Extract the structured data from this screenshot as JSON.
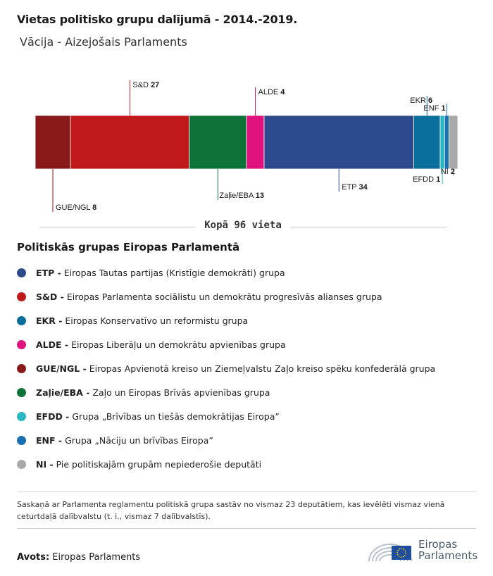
{
  "title": "Vietas politisko grupu dalījumā - 2014.-2019.",
  "subtitle": "Vācija - Aizejošais Parlaments",
  "total_label": "Kopā 96 vieta",
  "chart_data": {
    "type": "bar",
    "orientation": "stacked-horizontal",
    "total": 96,
    "categories": [
      "GUE/NGL",
      "S&D",
      "Zaļie/EBA",
      "ALDE",
      "ETP",
      "EKR",
      "EFDD",
      "ENF",
      "NI"
    ],
    "values": [
      8,
      27,
      13,
      4,
      34,
      6,
      1,
      1,
      2
    ],
    "colors": [
      "#8a1a1a",
      "#c0191c",
      "#0d7339",
      "#e0127d",
      "#2c4a8c",
      "#0b6f9e",
      "#2bb8c0",
      "#1a6fb0",
      "#a9a9a9"
    ],
    "label_sides": [
      "below",
      "above",
      "below",
      "above",
      "below",
      "above",
      "below",
      "above",
      "below"
    ]
  },
  "legend_title": "Politiskās grupas Eiropas Parlamentā",
  "legend": [
    {
      "abbr": "ETP -",
      "desc": "Eiropas Tautas partijas (Kristīgie demokrāti) grupa",
      "color": "#2c4a8c"
    },
    {
      "abbr": "S&D -",
      "desc": "Eiropas Parlamenta sociālistu un demokrātu progresīvās alianses grupa",
      "color": "#c0191c"
    },
    {
      "abbr": "EKR -",
      "desc": "Eiropas Konservatīvo un reformistu grupa",
      "color": "#0b6f9e"
    },
    {
      "abbr": "ALDE -",
      "desc": "Eiropas Liberāļu un demokrātu apvienības grupa",
      "color": "#e0127d"
    },
    {
      "abbr": "GUE/NGL -",
      "desc": "Eiropas Apvienotā kreiso un Ziemeļvalstu Zaļo kreiso spēku konfederālā grupa",
      "color": "#8a1a1a"
    },
    {
      "abbr": "Zaļie/EBA -",
      "desc": "Zaļo un Eiropas Brīvās apvienības grupa",
      "color": "#0d7339"
    },
    {
      "abbr": "EFDD -",
      "desc": "Grupa „Brīvības un tiešās demokrātijas Eiropa”",
      "color": "#2bb8c0"
    },
    {
      "abbr": "ENF -",
      "desc": "Grupa „Nāciju un brīvības Eiropa”",
      "color": "#1a6fb0"
    },
    {
      "abbr": "NI -",
      "desc": "Pie politiskajām grupām nepiederošie deputāti",
      "color": "#a9a9a9"
    }
  ],
  "footnote": "Saskaņā ar Parlamenta reglamentu politiskā grupa sastāv no vismaz 23 deputātiem, kas ievēlēti vismaz vienā ceturtdaļā dalībvalstu (t. i., vismaz 7 dalībvalstīs).",
  "source_label": "Avots:",
  "source_value": "Eiropas Parlaments",
  "logo_line1": "Eiropas",
  "logo_line2": "Parlaments"
}
